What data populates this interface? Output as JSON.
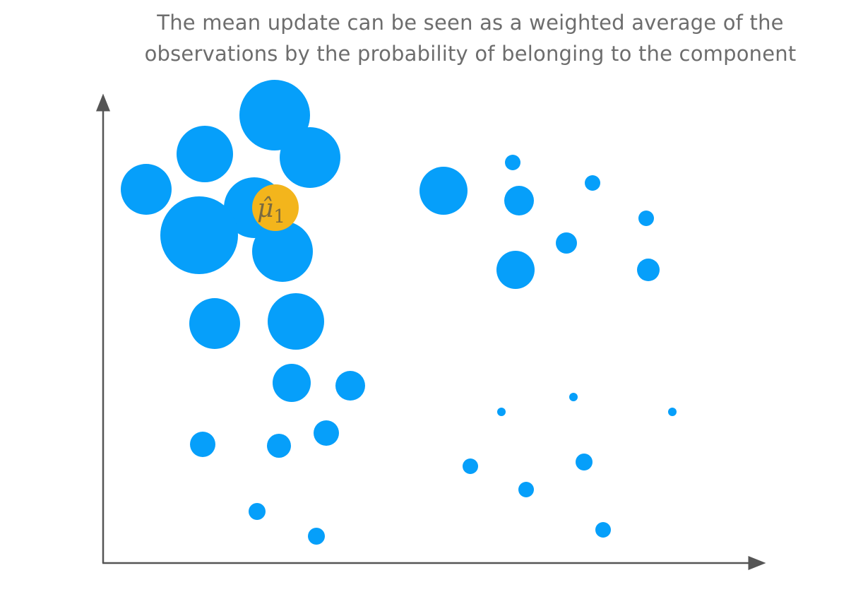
{
  "caption": {
    "line1": "The mean update can be seen as a weighted average of the",
    "line2": "observations by the probability of belonging to the component"
  },
  "colors": {
    "point": "#069ffa",
    "mean": "#f3b51c",
    "axis": "#555555",
    "text": "#6d6d6d"
  },
  "mean_marker": {
    "symbol": "μ̂",
    "subscript": "1"
  }
}
